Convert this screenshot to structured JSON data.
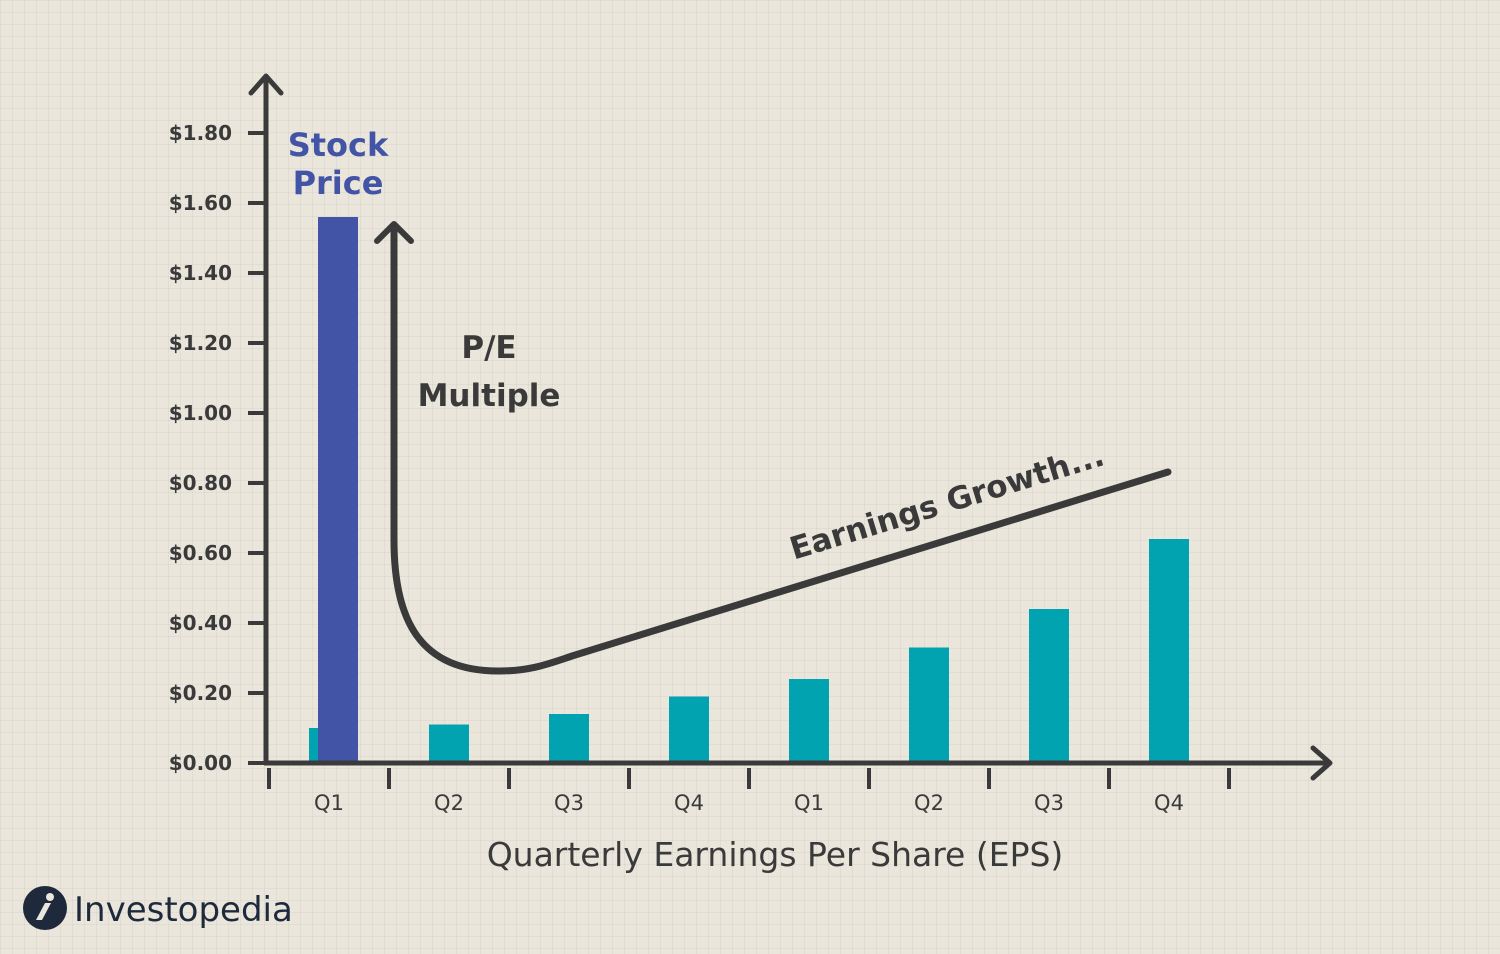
{
  "chart_data": {
    "type": "bar",
    "xlabel": "Quarterly Earnings Per Share (EPS)",
    "ylabel": "",
    "ylim": [
      0,
      1.8
    ],
    "yticks": [
      "$0.00",
      "$0.20",
      "$0.40",
      "$0.60",
      "$0.80",
      "$1.00",
      "$1.20",
      "$1.40",
      "$1.60",
      "$1.80"
    ],
    "ytick_values": [
      0,
      0.2,
      0.4,
      0.6,
      0.8,
      1.0,
      1.2,
      1.4,
      1.6,
      1.8
    ],
    "categories": [
      "Q1",
      "Q2",
      "Q3",
      "Q4",
      "Q1",
      "Q2",
      "Q3",
      "Q4"
    ],
    "eps_values": [
      0.1,
      0.11,
      0.14,
      0.19,
      0.24,
      0.33,
      0.44,
      0.64
    ],
    "stock_price": {
      "category_index": 0,
      "value": 1.56
    },
    "annotations": {
      "stock_price_line1": "Stock",
      "stock_price_line2": "Price",
      "pe_line1": "P/E",
      "pe_line2": "Multiple",
      "earnings_growth": "Earnings Growth..."
    },
    "colors": {
      "eps_bar": "#00a3af",
      "stock_bar": "#4254a6",
      "axis": "#3a3a3a"
    },
    "grid": false,
    "legend": "none"
  },
  "brand": {
    "name": "Investopedia",
    "logo_icon": "investopedia-logo-icon"
  }
}
